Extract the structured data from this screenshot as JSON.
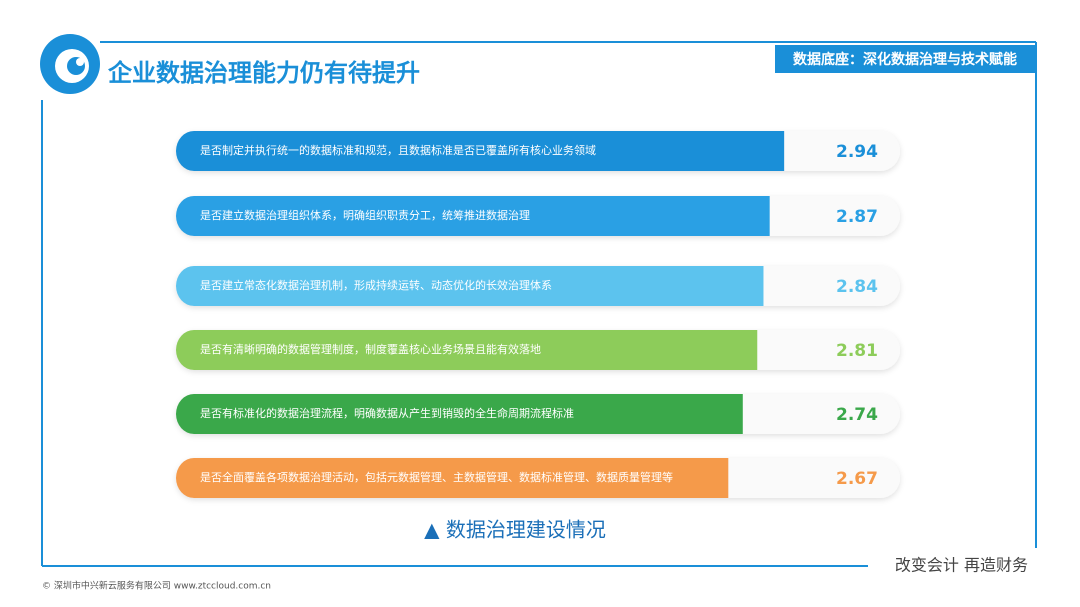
{
  "header": {
    "title": "企业数据治理能力仍有待提升",
    "tag": "数据底座：深化数据治理与技术赋能"
  },
  "chart_data": {
    "type": "bar",
    "categories": [
      "是否制定并执行统一的数据标准和规范，且数据标准是否已覆盖所有核心业务领域",
      "是否建立数据治理组织体系，明确组织职责分工，统筹推进数据治理",
      "是否建立常态化数据治理机制，形成持续运转、动态优化的长效治理体系",
      "是否有清晰明确的数据管理制度，制度覆盖核心业务场景且能有效落地",
      "是否有标准化的数据治理流程，明确数据从产生到销毁的全生命周期流程标准",
      "是否全面覆盖各项数据治理活动，包括元数据管理、主数据管理、数据标准管理、数据质量管理等"
    ],
    "values": [
      2.94,
      2.87,
      2.84,
      2.81,
      2.74,
      2.67
    ],
    "colors": [
      "#1a8fd8",
      "#2aa0e4",
      "#5cc3ee",
      "#8dcc5a",
      "#3aa84a",
      "#f59a4a"
    ],
    "xlim": [
      0,
      3.5
    ],
    "caption": "▲ 数据治理建设情况"
  },
  "footer": {
    "slogan": "改变会计  再造财务",
    "copyright": "© 深圳市中兴新云服务有限公司  www.ztccloud.com.cn"
  }
}
